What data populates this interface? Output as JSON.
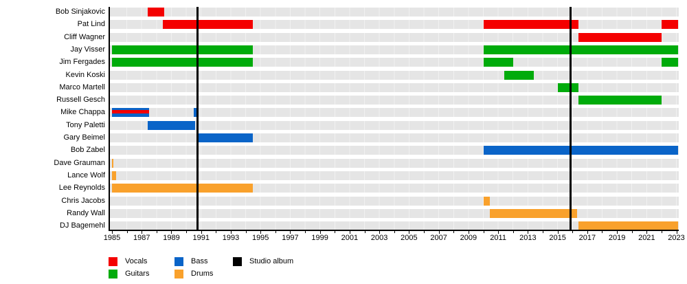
{
  "chart_data": {
    "type": "timeline",
    "x_axis": {
      "year_start": 1985,
      "year_end": 2023,
      "tick_step": 1,
      "label_step": 2,
      "labels": [
        "1985",
        "1987",
        "1989",
        "1991",
        "1993",
        "1995",
        "1997",
        "1999",
        "2001",
        "2003",
        "2005",
        "2007",
        "2009",
        "2011",
        "2013",
        "2015",
        "2017",
        "2019",
        "2021",
        "2023"
      ]
    },
    "legend": [
      {
        "label": "Vocals",
        "role": "vocals"
      },
      {
        "label": "Guitars",
        "role": "guitars"
      },
      {
        "label": "Bass",
        "role": "bass"
      },
      {
        "label": "Drums",
        "role": "drums"
      },
      {
        "label": "Studio album",
        "role": "album"
      }
    ],
    "albums": [
      1990.74,
      2015.85
    ],
    "members": [
      {
        "name": "Bob Sinjakovic",
        "segments": [
          {
            "role": "vocals",
            "start": 1987.4,
            "end": 1988.5
          }
        ]
      },
      {
        "name": "Pat Lind",
        "segments": [
          {
            "role": "vocals",
            "start": 1988.4,
            "end": 1994.5
          },
          {
            "role": "vocals",
            "start": 2010.0,
            "end": 2016.4
          },
          {
            "role": "vocals",
            "start": 2022.0,
            "end": 2023.1
          }
        ]
      },
      {
        "name": "Cliff Wagner",
        "segments": [
          {
            "role": "vocals",
            "start": 2016.4,
            "end": 2022.0
          }
        ]
      },
      {
        "name": "Jay Visser",
        "segments": [
          {
            "role": "guitars",
            "start": 1985.0,
            "end": 1994.5
          },
          {
            "role": "guitars",
            "start": 2010.0,
            "end": 2023.1
          }
        ]
      },
      {
        "name": "Jim Fergades",
        "segments": [
          {
            "role": "guitars",
            "start": 1985.0,
            "end": 1994.5
          },
          {
            "role": "guitars",
            "start": 2010.0,
            "end": 2012.0
          },
          {
            "role": "guitars",
            "start": 2022.0,
            "end": 2023.1
          }
        ]
      },
      {
        "name": "Kevin Koski",
        "segments": [
          {
            "role": "guitars",
            "start": 2011.4,
            "end": 2013.4
          }
        ]
      },
      {
        "name": "Marco Martell",
        "segments": [
          {
            "role": "guitars",
            "start": 2015.0,
            "end": 2016.4
          }
        ]
      },
      {
        "name": "Russell Gesch",
        "segments": [
          {
            "role": "guitars",
            "start": 2016.4,
            "end": 2022.0
          }
        ]
      },
      {
        "name": "Mike Chappa",
        "segments": [
          {
            "role": "bass",
            "start": 1985.0,
            "end": 1987.5,
            "stripe_role": "vocals"
          },
          {
            "role": "bass",
            "start": 1990.5,
            "end": 1990.72
          }
        ]
      },
      {
        "name": "Tony Paletti",
        "segments": [
          {
            "role": "bass",
            "start": 1987.4,
            "end": 1990.6
          }
        ]
      },
      {
        "name": "Gary Beimel",
        "segments": [
          {
            "role": "bass",
            "start": 1990.72,
            "end": 1994.5
          }
        ]
      },
      {
        "name": "Bob Zabel",
        "segments": [
          {
            "role": "bass",
            "start": 2010.0,
            "end": 2023.1
          }
        ]
      },
      {
        "name": "Dave Grauman",
        "segments": [
          {
            "role": "drums",
            "start": 1985.0,
            "end": 1985.1
          }
        ]
      },
      {
        "name": "Lance Wolf",
        "segments": [
          {
            "role": "drums",
            "start": 1985.0,
            "end": 1985.3
          }
        ]
      },
      {
        "name": "Lee Reynolds",
        "segments": [
          {
            "role": "drums",
            "start": 1985.0,
            "end": 1994.5
          }
        ]
      },
      {
        "name": "Chris Jacobs",
        "segments": [
          {
            "role": "drums",
            "start": 2010.0,
            "end": 2010.45
          }
        ]
      },
      {
        "name": "Randy Wall",
        "segments": [
          {
            "role": "drums",
            "start": 2010.45,
            "end": 2016.3
          }
        ]
      },
      {
        "name": "DJ Bagemehl",
        "segments": [
          {
            "role": "drums",
            "start": 2016.4,
            "end": 2023.1
          }
        ]
      }
    ]
  },
  "colors": {
    "vocals": "#f40000",
    "guitars": "#00ab0b",
    "bass": "#0a64c8",
    "drums": "#f9a12c",
    "album": "#000000",
    "row_band": "#e5e5e5",
    "background": "#ffffff",
    "text": "#000000"
  }
}
